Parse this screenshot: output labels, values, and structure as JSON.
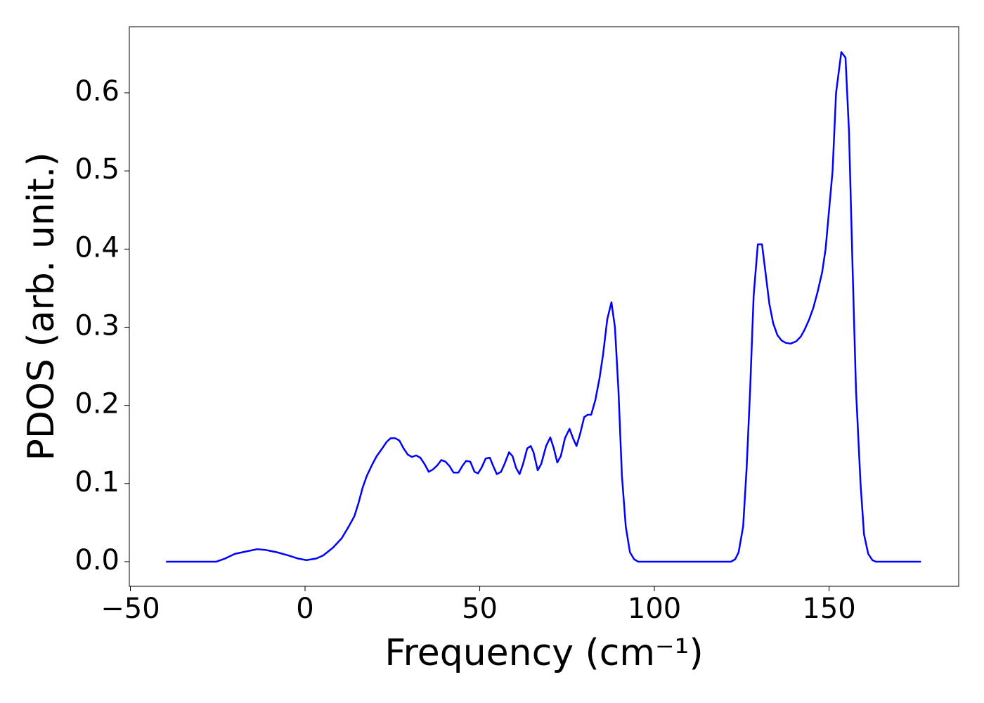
{
  "chart_data": {
    "type": "line",
    "x_label": "Frequency (cm⁻¹)",
    "y_label": "PDOS (arb. unit.)",
    "xlim": [
      -50.3,
      187.1
    ],
    "ylim": [
      -0.0315,
      0.6845
    ],
    "xticks": [
      {
        "value": -50,
        "label": "−50"
      },
      0,
      50,
      100,
      150
    ],
    "yticks": [
      {
        "value": 0,
        "label": "0.0"
      },
      0.1,
      0.2,
      0.3,
      0.4,
      0.5,
      0.6
    ],
    "grid": false,
    "series": [
      {
        "color": "#0000ff",
        "x": [
          -39.8,
          -25.4,
          -22.9,
          -20.1,
          -16.9,
          -13.7,
          -11.3,
          -8,
          -4.8,
          -2,
          0.4,
          3.2,
          5.2,
          8,
          10.5,
          12.5,
          14.1,
          15.3,
          16.5,
          17.7,
          19.3,
          20.5,
          22.1,
          23.3,
          24.5,
          25.8,
          27,
          28.2,
          29.4,
          30.6,
          31.8,
          33,
          34.2,
          35.4,
          36.6,
          37.8,
          39,
          40.2,
          41.4,
          42.5,
          43.9,
          45.1,
          46.1,
          47.3,
          48.5,
          49.5,
          50.5,
          51.7,
          52.9,
          53.9,
          54.9,
          56.1,
          57.1,
          58.4,
          59.4,
          60.4,
          61.4,
          62.4,
          63.6,
          64.6,
          65.4,
          66.6,
          67.6,
          69,
          70.2,
          71.2,
          72.2,
          73.2,
          74.4,
          75.7,
          76.7,
          77.7,
          78.7,
          79.9,
          80.9,
          81.9,
          83.1,
          84.3,
          85.3,
          86.5,
          87.7,
          88.7,
          89.7,
          90.7,
          91.8,
          93,
          94.2,
          95.4,
          121.9,
          123.1,
          124.1,
          125.4,
          126.4,
          127.4,
          128.4,
          129.6,
          130.8,
          131.8,
          132.9,
          134,
          135.2,
          136.4,
          137.6,
          139,
          140.6,
          141.9,
          143,
          144.3,
          145.5,
          146.7,
          148,
          149,
          150,
          151,
          152,
          153.5,
          154.7,
          155.7,
          156.7,
          157.7,
          159,
          160,
          161.2,
          162.4,
          163.4,
          176.3
        ],
        "values": [
          0,
          0,
          0.004,
          0.01,
          0.013,
          0.016,
          0.015,
          0.012,
          0.008,
          0.004,
          0.002,
          0.004,
          0.008,
          0.018,
          0.03,
          0.045,
          0.058,
          0.075,
          0.095,
          0.11,
          0.125,
          0.135,
          0.145,
          0.153,
          0.158,
          0.158,
          0.155,
          0.145,
          0.137,
          0.134,
          0.136,
          0.133,
          0.125,
          0.115,
          0.118,
          0.123,
          0.13,
          0.128,
          0.122,
          0.114,
          0.114,
          0.123,
          0.129,
          0.128,
          0.115,
          0.113,
          0.12,
          0.132,
          0.133,
          0.122,
          0.112,
          0.115,
          0.125,
          0.14,
          0.135,
          0.12,
          0.112,
          0.125,
          0.145,
          0.148,
          0.14,
          0.117,
          0.125,
          0.148,
          0.159,
          0.145,
          0.127,
          0.135,
          0.158,
          0.17,
          0.158,
          0.148,
          0.163,
          0.185,
          0.188,
          0.188,
          0.207,
          0.235,
          0.265,
          0.31,
          0.332,
          0.3,
          0.22,
          0.11,
          0.045,
          0.012,
          0.003,
          0,
          0,
          0.003,
          0.012,
          0.045,
          0.12,
          0.22,
          0.34,
          0.406,
          0.406,
          0.37,
          0.33,
          0.305,
          0.29,
          0.283,
          0.28,
          0.279,
          0.282,
          0.288,
          0.297,
          0.31,
          0.325,
          0.345,
          0.37,
          0.4,
          0.45,
          0.5,
          0.6,
          0.652,
          0.645,
          0.55,
          0.38,
          0.22,
          0.1,
          0.035,
          0.01,
          0.002,
          0,
          0
        ]
      }
    ]
  }
}
